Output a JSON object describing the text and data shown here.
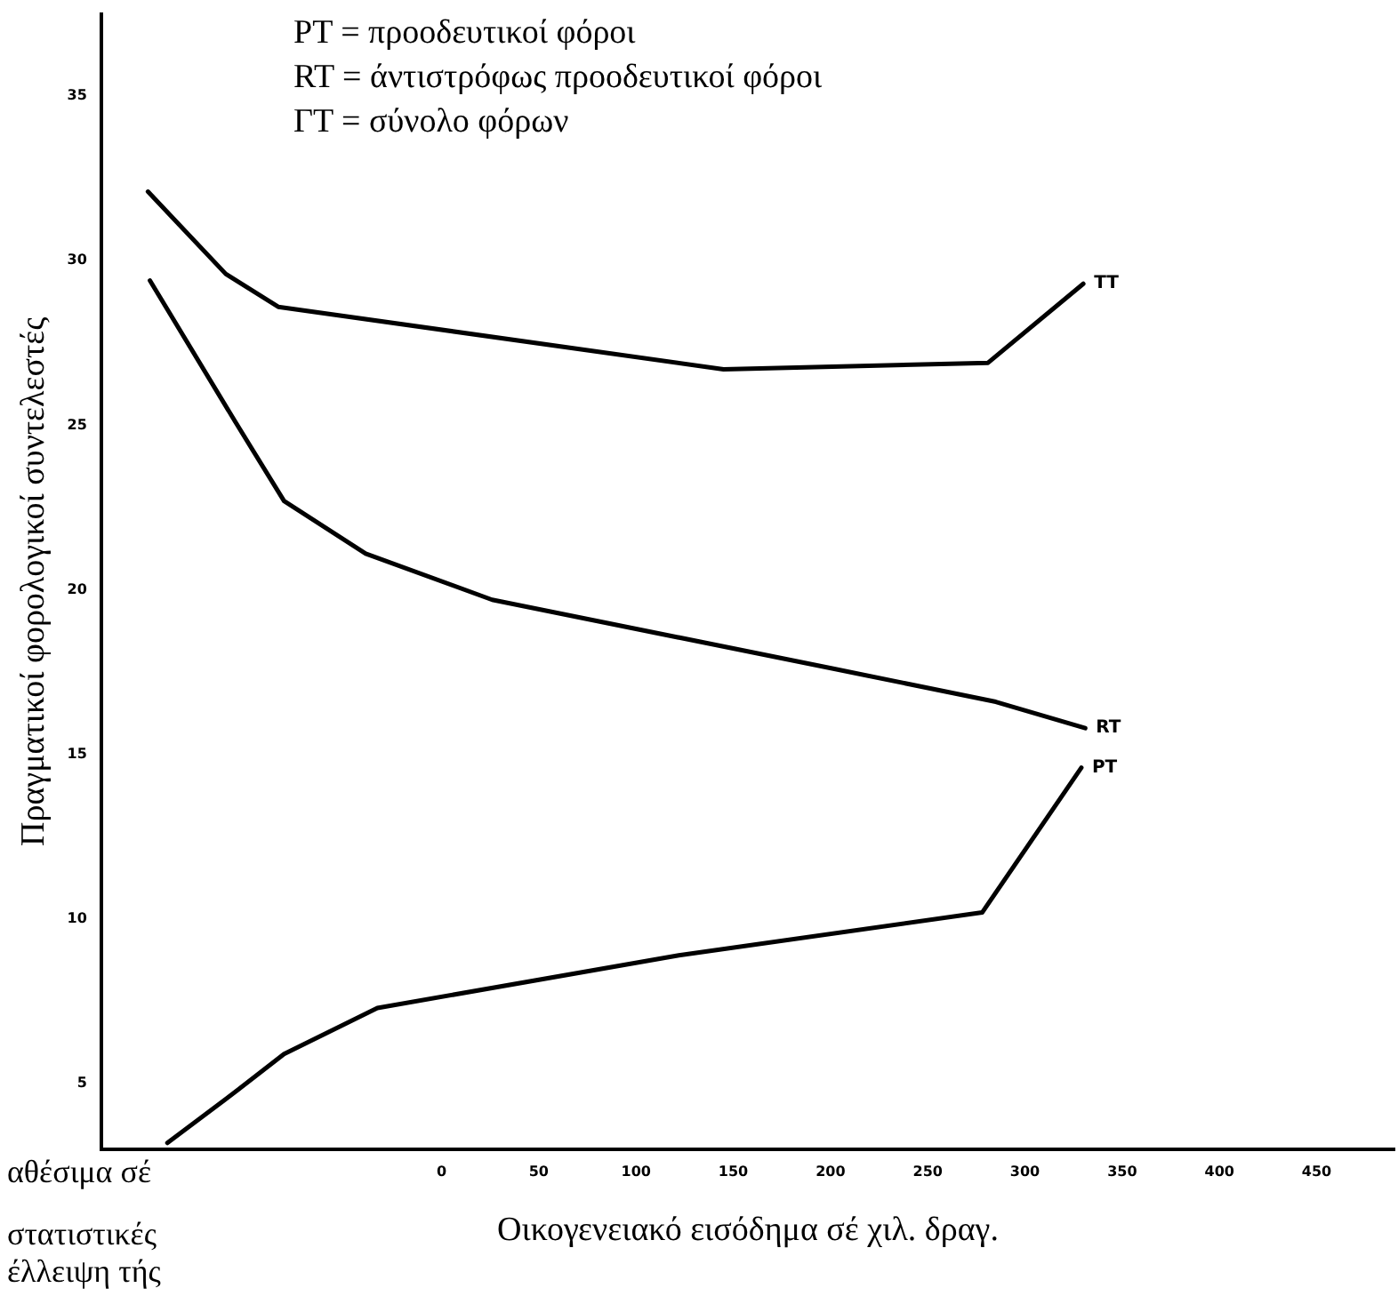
{
  "chart_data": {
    "type": "line",
    "xlabel": "Οικογενειακό εισόδημα σέ χιλ. δραγ.",
    "ylabel": "Πραγματικοί φορολογικοί συντελεστές",
    "annotations": [
      "PT = προοδευτικοί φόροι",
      "RT = άντιστρόφως προοδευτικοί φόροι",
      "ΓΤ = σύνολο φόρων",
      "αθέσιμα σέ",
      "στατιστικές",
      "έλλειψη τής"
    ],
    "xlim": [
      -175,
      490
    ],
    "xticks": [
      0,
      50,
      100,
      150,
      200,
      250,
      300,
      350,
      400,
      450
    ],
    "ylim": [
      3,
      37.5
    ],
    "yticks": [
      5,
      10,
      15,
      20,
      25,
      30,
      35
    ],
    "grid": false,
    "legend": false,
    "marker": "none",
    "line_style": "solid",
    "series": [
      {
        "name": "TT",
        "color": "#000000",
        "x": [
          -151,
          -111,
          -84,
          145,
          281,
          330
        ],
        "values": [
          32.1,
          29.6,
          28.6,
          26.7,
          26.9,
          29.3
        ]
      },
      {
        "name": "RT",
        "color": "#000000",
        "x": [
          -150,
          -106,
          -81,
          -39,
          26,
          202,
          285,
          331
        ],
        "values": [
          29.4,
          25.1,
          22.7,
          21.1,
          19.7,
          17.6,
          16.6,
          15.8
        ]
      },
      {
        "name": "PT",
        "color": "#000000",
        "x": [
          -141,
          -105,
          -81,
          -33,
          122,
          278,
          329
        ],
        "values": [
          3.2,
          4.8,
          5.9,
          7.3,
          8.9,
          10.2,
          14.6
        ]
      }
    ]
  }
}
